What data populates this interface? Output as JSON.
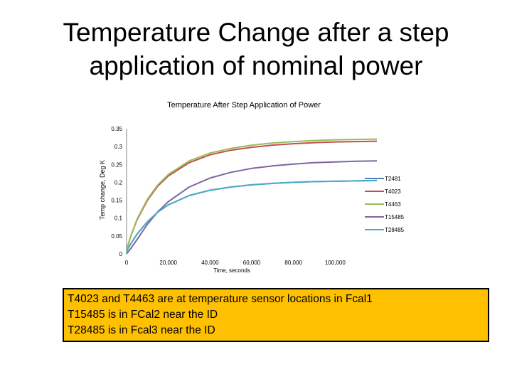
{
  "slide": {
    "title_line1": "Temperature Change after a step",
    "title_line2": "application of nominal power",
    "note_lines": [
      "T4023 and T4463 are at temperature sensor locations in Fcal1",
      "T15485 is in FCal2 near the ID",
      "T28485 is in Fcal3 near the ID"
    ],
    "note_background": "#ffc000"
  },
  "chart_data": {
    "type": "line",
    "title": "Temperature After Step Application of Power",
    "xlabel": "Time, seconds",
    "ylabel": "Temp change, Deg K",
    "xlim": [
      0,
      120000
    ],
    "ylim": [
      0,
      0.35
    ],
    "x_ticks": [
      0,
      20000,
      40000,
      60000,
      80000,
      100000
    ],
    "x_tick_labels": [
      "0",
      "20,000",
      "40,000",
      "60,000",
      "80,000",
      "100,000"
    ],
    "y_ticks": [
      0,
      0.05,
      0.1,
      0.15,
      0.2,
      0.25,
      0.3,
      0.35
    ],
    "y_tick_labels": [
      "0",
      "0.05",
      "0.1",
      "0.15",
      "0.2",
      "0.25",
      "0.3",
      "0.35"
    ],
    "grid": false,
    "legend_position": "right",
    "x": [
      0,
      500,
      2000,
      5000,
      10000,
      15000,
      20000,
      30000,
      40000,
      50000,
      60000,
      70000,
      80000,
      90000,
      100000,
      110000,
      120000
    ],
    "series": [
      {
        "name": "T2481",
        "color": "#4f81bd",
        "values": [
          0,
          0.013,
          0.028,
          0.055,
          0.09,
          0.117,
          0.137,
          0.163,
          0.178,
          0.187,
          0.193,
          0.197,
          0.2,
          0.202,
          0.203,
          0.204,
          0.205
        ]
      },
      {
        "name": "T4023",
        "color": "#c0504d",
        "values": [
          0,
          0.02,
          0.05,
          0.095,
          0.15,
          0.19,
          0.218,
          0.255,
          0.277,
          0.29,
          0.298,
          0.304,
          0.308,
          0.311,
          0.313,
          0.314,
          0.315
        ]
      },
      {
        "name": "T4463",
        "color": "#9bbb59",
        "values": [
          0,
          0.02,
          0.05,
          0.097,
          0.153,
          0.193,
          0.222,
          0.26,
          0.282,
          0.295,
          0.304,
          0.31,
          0.314,
          0.317,
          0.319,
          0.32,
          0.321
        ]
      },
      {
        "name": "T15485",
        "color": "#8064a2",
        "values": [
          0,
          0.004,
          0.015,
          0.04,
          0.083,
          0.118,
          0.146,
          0.187,
          0.212,
          0.228,
          0.239,
          0.246,
          0.251,
          0.255,
          0.257,
          0.259,
          0.26
        ]
      },
      {
        "name": "T28485",
        "color": "#4bacc6",
        "values": [
          0,
          0.013,
          0.028,
          0.055,
          0.09,
          0.117,
          0.137,
          0.163,
          0.178,
          0.187,
          0.193,
          0.197,
          0.2,
          0.202,
          0.203,
          0.204,
          0.205
        ]
      }
    ]
  }
}
